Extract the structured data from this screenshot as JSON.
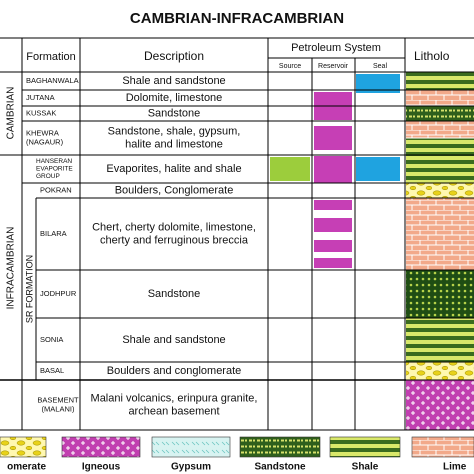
{
  "title": "CAMBRIAN-INFRACAMBRIAN",
  "header": {
    "formation": "Formation",
    "description": "Description",
    "petroleum_system": "Petroleum System",
    "source": "Source",
    "reservoir": "Reservoir",
    "seal": "Seal",
    "lithology": "Litholo"
  },
  "eras": {
    "cambrian": "CAMBRIAN",
    "infracambrian": "INFRACAMBRIAN",
    "sr_formation": "SR FORMATION"
  },
  "rows": [
    {
      "formation": [
        "BAGHANWALA"
      ],
      "description": [
        "Shale and sandstone"
      ]
    },
    {
      "formation": [
        "JUTANA"
      ],
      "description": [
        "Dolomite, limestone"
      ]
    },
    {
      "formation": [
        "KUSSAK"
      ],
      "description": [
        "Sandstone"
      ]
    },
    {
      "formation": [
        "KHEWRA",
        "(NAGAUR)"
      ],
      "description": [
        "Sandstone, shale, gypsum,",
        "halite and limestone"
      ]
    },
    {
      "formation": [
        "HANSERAN",
        "EVAPORITE",
        "GROUP"
      ],
      "description": [
        "Evaporites, halite and shale"
      ]
    },
    {
      "formation": [
        "POKRAN"
      ],
      "description": [
        "Boulders, Conglomerate"
      ]
    },
    {
      "formation": [
        "BILARA"
      ],
      "description": [
        "Chert, cherty dolomite, limestone,",
        "cherty and ferruginous breccia"
      ]
    },
    {
      "formation": [
        "JODHPUR"
      ],
      "description": [
        "Sandstone"
      ]
    },
    {
      "formation": [
        "SONIA"
      ],
      "description": [
        "Shale and sandstone"
      ]
    },
    {
      "formation": [
        "BASAL"
      ],
      "description": [
        "Boulders and conglomerate"
      ]
    },
    {
      "formation": [
        "BASEMENT",
        "(MALANI)"
      ],
      "description": [
        "Malani volcanics, erinpura granite,",
        "archean basement"
      ]
    }
  ],
  "legend": [
    "omerate",
    "Igneous",
    "Gypsum",
    "Sandstone",
    "Shale",
    "Lime"
  ]
}
